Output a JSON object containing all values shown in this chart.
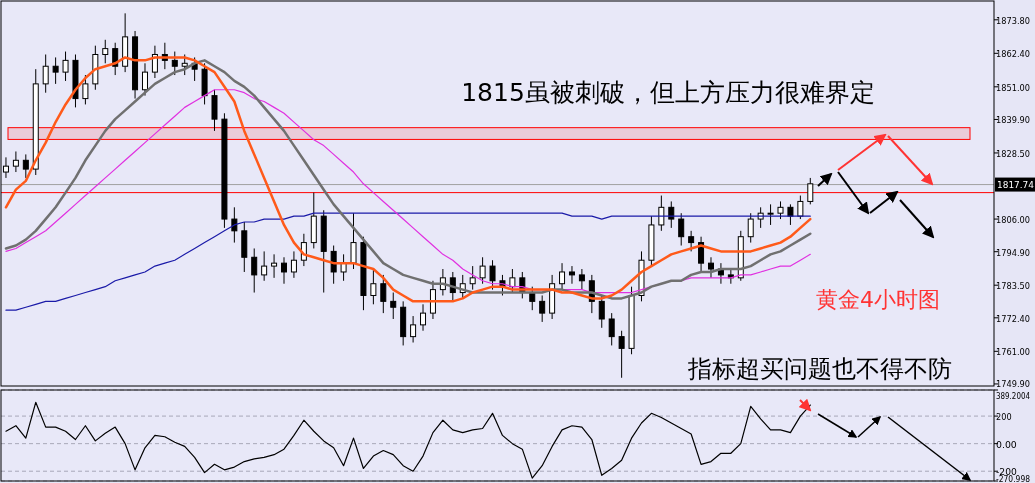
{
  "chart_data": [
    {
      "type": "candlestick",
      "tick_labels": "y",
      "grid": false,
      "categories": [
        null,
        null,
        null,
        null,
        null,
        null,
        null,
        null,
        null,
        null,
        null,
        null,
        null,
        null,
        null,
        null,
        null,
        null,
        null,
        null,
        null,
        null,
        null,
        null,
        null,
        null,
        null,
        null,
        null,
        null,
        null,
        null,
        null,
        null,
        null,
        null,
        null,
        null,
        null,
        null,
        null,
        null,
        null,
        null,
        null,
        null,
        null,
        null,
        null,
        null,
        null,
        null,
        null,
        null,
        null,
        null,
        null,
        null,
        null,
        null,
        null,
        null,
        null,
        null,
        null,
        null,
        null,
        null,
        null,
        null,
        null,
        null,
        null,
        null,
        null,
        null,
        null,
        null,
        null,
        null,
        null,
        null,
        null,
        null,
        null,
        null,
        null,
        null,
        null,
        null,
        null,
        null,
        null,
        null,
        null,
        null,
        null,
        null,
        null,
        null
      ],
      "ylim": [
        1749.2,
        1880.2
      ],
      "yticks": [
        {
          "value": 1873.8,
          "label": "1873.80"
        },
        {
          "value": 1862.4,
          "label": "1862.40"
        },
        {
          "value": 1851,
          "label": "1851.00"
        },
        {
          "value": 1839.9,
          "label": "1839.90"
        },
        {
          "value": 1828.5,
          "label": "1828.50"
        },
        {
          "value": 1806,
          "label": "1806.00"
        },
        {
          "value": 1794.9,
          "label": "1794.90"
        },
        {
          "value": 1783.5,
          "label": "1783.50"
        },
        {
          "value": 1772.4,
          "label": "1772.40"
        },
        {
          "value": 1761,
          "label": "1761.00"
        },
        {
          "value": 1749.9,
          "label": "1749.90"
        }
      ],
      "ohlc": [
        [
          1822,
          1827,
          1820,
          1824
        ],
        [
          1824,
          1829,
          1822,
          1826
        ],
        [
          1826,
          1828,
          1820,
          1823
        ],
        [
          1823,
          1857,
          1821,
          1852
        ],
        [
          1852,
          1862,
          1849,
          1858
        ],
        [
          1858,
          1861,
          1852,
          1856
        ],
        [
          1856,
          1863,
          1853,
          1860
        ],
        [
          1860,
          1862,
          1844,
          1847
        ],
        [
          1847,
          1855,
          1845,
          1852
        ],
        [
          1852,
          1865,
          1850,
          1862
        ],
        [
          1862,
          1867,
          1859,
          1864
        ],
        [
          1864,
          1866,
          1855,
          1858
        ],
        [
          1858,
          1876,
          1856,
          1868
        ],
        [
          1868,
          1870,
          1847,
          1850
        ],
        [
          1850,
          1859,
          1848,
          1856
        ],
        [
          1856,
          1865,
          1854,
          1862
        ],
        [
          1862,
          1866,
          1857,
          1860
        ],
        [
          1860,
          1863,
          1855,
          1858
        ],
        [
          1858,
          1862,
          1855,
          1859
        ],
        [
          1859,
          1861,
          1853,
          1857
        ],
        [
          1857,
          1859,
          1845,
          1848
        ],
        [
          1848,
          1850,
          1836,
          1840
        ],
        [
          1840,
          1842,
          1803,
          1806
        ],
        [
          1806,
          1810,
          1798,
          1802
        ],
        [
          1802,
          1805,
          1788,
          1793
        ],
        [
          1793,
          1796,
          1781,
          1787
        ],
        [
          1787,
          1795,
          1785,
          1790
        ],
        [
          1790,
          1794,
          1786,
          1791
        ],
        [
          1791,
          1793,
          1784,
          1788
        ],
        [
          1788,
          1795,
          1786,
          1792
        ],
        [
          1792,
          1801,
          1790,
          1798
        ],
        [
          1798,
          1815,
          1796,
          1807
        ],
        [
          1807,
          1809,
          1781,
          1795
        ],
        [
          1795,
          1797,
          1784,
          1788
        ],
        [
          1788,
          1794,
          1785,
          1791
        ],
        [
          1791,
          1808,
          1789,
          1798
        ],
        [
          1798,
          1800,
          1775,
          1780
        ],
        [
          1780,
          1789,
          1777,
          1784
        ],
        [
          1784,
          1787,
          1774,
          1778
        ],
        [
          1778,
          1781,
          1772,
          1776
        ],
        [
          1776,
          1778,
          1763,
          1766
        ],
        [
          1766,
          1773,
          1764,
          1770
        ],
        [
          1770,
          1777,
          1768,
          1774
        ],
        [
          1774,
          1785,
          1772,
          1782
        ],
        [
          1782,
          1789,
          1780,
          1786
        ],
        [
          1786,
          1788,
          1778,
          1781
        ],
        [
          1781,
          1787,
          1779,
          1784
        ],
        [
          1784,
          1790,
          1782,
          1786
        ],
        [
          1786,
          1793,
          1784,
          1790
        ],
        [
          1790,
          1792,
          1782,
          1785
        ],
        [
          1785,
          1787,
          1780,
          1783
        ],
        [
          1783,
          1789,
          1781,
          1786
        ],
        [
          1786,
          1788,
          1779,
          1781
        ],
        [
          1781,
          1783,
          1775,
          1778
        ],
        [
          1778,
          1780,
          1771,
          1774
        ],
        [
          1774,
          1787,
          1772,
          1784
        ],
        [
          1784,
          1791,
          1782,
          1788
        ],
        [
          1788,
          1790,
          1784,
          1787
        ],
        [
          1787,
          1789,
          1782,
          1785
        ],
        [
          1785,
          1787,
          1774,
          1778
        ],
        [
          1778,
          1780,
          1769,
          1772
        ],
        [
          1772,
          1774,
          1763,
          1766
        ],
        [
          1766,
          1768,
          1752,
          1762
        ],
        [
          1762,
          1783,
          1760,
          1780
        ],
        [
          1780,
          1795,
          1778,
          1792
        ],
        [
          1792,
          1807,
          1790,
          1804
        ],
        [
          1804,
          1814,
          1802,
          1810
        ],
        [
          1810,
          1812,
          1803,
          1806
        ],
        [
          1806,
          1808,
          1797,
          1800
        ],
        [
          1800,
          1802,
          1795,
          1798
        ],
        [
          1798,
          1800,
          1788,
          1791
        ],
        [
          1791,
          1793,
          1786,
          1789
        ],
        [
          1789,
          1791,
          1784,
          1787
        ],
        [
          1787,
          1789,
          1784,
          1786
        ],
        [
          1786,
          1802,
          1785,
          1800
        ],
        [
          1800,
          1808,
          1798,
          1806
        ],
        [
          1806,
          1810,
          1803,
          1808
        ],
        [
          1808,
          1811,
          1804,
          1808
        ],
        [
          1808,
          1812,
          1806,
          1810
        ],
        [
          1810,
          1811,
          1804,
          1807
        ],
        [
          1807,
          1814,
          1806,
          1812
        ],
        [
          1812,
          1820,
          1811,
          1818
        ],
        null,
        null,
        null,
        null,
        null,
        null,
        null,
        null,
        null,
        null,
        null,
        null,
        null,
        null,
        null,
        null,
        null,
        null
      ],
      "series": [
        {
          "type": "line",
          "color": "#1a1aa8",
          "values": [
            1775,
            1775,
            1776,
            1777,
            1778,
            1778,
            1779,
            1780,
            1781,
            1782,
            1783,
            1785,
            1786,
            1787,
            1788,
            1790,
            1791,
            1792,
            1794,
            1796,
            1798,
            1800,
            1802,
            1804,
            1805,
            1805,
            1806,
            1806,
            1806,
            1807,
            1807,
            1808,
            1808,
            1808,
            1808,
            1808,
            1808,
            1808,
            1808,
            1808,
            1808,
            1808,
            1808,
            1808,
            1808,
            1808,
            1808,
            1808,
            1808,
            1808,
            1808,
            1808,
            1808,
            1808,
            1808,
            1808,
            1808,
            1807,
            1807,
            1807,
            1806,
            1807,
            1807,
            1807,
            1807,
            1807,
            1807,
            1807,
            1807,
            1807,
            1807,
            1807,
            1807,
            1807,
            1807,
            1807,
            1807,
            1807,
            1807,
            1807,
            1807,
            1807,
            null,
            null,
            null,
            null,
            null,
            null,
            null,
            null,
            null,
            null,
            null,
            null,
            null,
            null,
            null,
            null,
            null,
            null
          ]
        },
        {
          "type": "line",
          "color": "#e030e0",
          "values": [
            1795,
            1796,
            1798,
            1800,
            1802,
            1805,
            1808,
            1811,
            1814,
            1817,
            1820,
            1823,
            1826,
            1829,
            1832,
            1835,
            1838,
            1841,
            1844,
            1846,
            1848,
            1850,
            1850,
            1850,
            1849,
            1847,
            1846,
            1844,
            1842,
            1839,
            1836,
            1833,
            1831,
            1828,
            1825,
            1822,
            1818,
            1815,
            1812,
            1809,
            1806,
            1803,
            1800,
            1797,
            1794,
            1792,
            1789,
            1787,
            1785,
            1784,
            1784,
            1783,
            1783,
            1782,
            1782,
            1782,
            1782,
            1782,
            1782,
            1781,
            1781,
            1781,
            1781,
            1781,
            1782,
            1783,
            1784,
            1785,
            1785,
            1786,
            1786,
            1786,
            1786,
            1786,
            1787,
            1787,
            1788,
            1789,
            1790,
            1790,
            1792,
            1794,
            null,
            null,
            null,
            null,
            null,
            null,
            null,
            null,
            null,
            null,
            null,
            null,
            null,
            null,
            null,
            null,
            null,
            null
          ]
        },
        {
          "type": "line",
          "color": "#707070",
          "values": [
            1796,
            1797,
            1799,
            1802,
            1806,
            1810,
            1815,
            1820,
            1826,
            1831,
            1836,
            1840,
            1843,
            1846,
            1849,
            1852,
            1854,
            1856,
            1857,
            1859,
            1860,
            1858,
            1856,
            1853,
            1851,
            1848,
            1844,
            1840,
            1836,
            1831,
            1826,
            1821,
            1816,
            1811,
            1807,
            1803,
            1799,
            1795,
            1791,
            1789,
            1787,
            1786,
            1785,
            1784,
            1784,
            1783,
            1782,
            1781,
            1781,
            1781,
            1781,
            1781,
            1781,
            1781,
            1781,
            1782,
            1782,
            1781,
            1781,
            1781,
            1780,
            1779,
            1779,
            1780,
            1781,
            1783,
            1784,
            1785,
            1785,
            1787,
            1788,
            1788,
            1789,
            1789,
            1789,
            1790,
            1792,
            1794,
            1795,
            1797,
            1799,
            1801,
            null,
            null,
            null,
            null,
            null,
            null,
            null,
            null,
            null,
            null,
            null,
            null,
            null,
            null,
            null,
            null,
            null,
            null
          ]
        },
        {
          "type": "line",
          "color": "#ff5a1a",
          "values": [
            1810,
            1816,
            1819,
            1826,
            1832,
            1839,
            1845,
            1850,
            1854,
            1857,
            1858,
            1859,
            1861,
            1860,
            1860,
            1861,
            1861,
            1861,
            1861,
            1860,
            1858,
            1856,
            1851,
            1846,
            1836,
            1828,
            1820,
            1812,
            1804,
            1798,
            1794,
            1793,
            1792,
            1791,
            1791,
            1791,
            1790,
            1789,
            1786,
            1782,
            1780,
            1778,
            1778,
            1778,
            1778,
            1778,
            1779,
            1781,
            1782,
            1783,
            1783,
            1782,
            1782,
            1782,
            1782,
            1782,
            1781,
            1781,
            1780,
            1779,
            1779,
            1780,
            1782,
            1785,
            1788,
            1790,
            1792,
            1794,
            1795,
            1796,
            1797,
            1796,
            1795,
            1795,
            1795,
            1795,
            1796,
            1797,
            1798,
            1800,
            1803,
            1806,
            null,
            null,
            null,
            null,
            null,
            null,
            null,
            null,
            null,
            null,
            null,
            null,
            null,
            null,
            null,
            null,
            null,
            null
          ]
        }
      ],
      "bands": [
        {
          "axis": "y",
          "from": 1833.1,
          "to": 1837.1,
          "color": "#ff0000"
        }
      ],
      "ref_lines": [
        {
          "axis": "y",
          "value": 1817.74,
          "label": "1817.74",
          "color": "#a0a0a0"
        },
        {
          "axis": "y",
          "value": 1815,
          "color": "#ff0000"
        }
      ],
      "annotations": [
        "1815虽被刺破，但上方压力很难界定",
        "黄金4小时图",
        "指标超买问题也不得不防"
      ]
    },
    {
      "type": "line",
      "tick_labels": "y",
      "grid": "y",
      "categories": [
        null,
        null,
        null,
        null,
        null,
        null,
        null,
        null,
        null,
        null,
        null,
        null,
        null,
        null,
        null,
        null,
        null,
        null,
        null,
        null,
        null,
        null,
        null,
        null,
        null,
        null,
        null,
        null,
        null,
        null,
        null,
        null,
        null,
        null,
        null,
        null,
        null,
        null,
        null,
        null,
        null,
        null,
        null,
        null,
        null,
        null,
        null,
        null,
        null,
        null,
        null,
        null,
        null,
        null,
        null,
        null,
        null,
        null,
        null,
        null,
        null,
        null,
        null,
        null,
        null,
        null,
        null,
        null,
        null,
        null,
        null,
        null,
        null,
        null,
        null,
        null,
        null,
        null,
        null,
        null,
        null,
        null,
        null,
        null,
        null,
        null,
        null,
        null,
        null,
        null,
        null,
        null,
        null,
        null,
        null,
        null,
        null,
        null,
        null,
        null
      ],
      "ylim": [
        -270.998,
        389.2004
      ],
      "yticks": [
        {
          "value": 389.2004,
          "label": "389.2004"
        },
        200,
        {
          "value": 0,
          "label": "0.00"
        },
        -200,
        {
          "value": -270.998,
          "label": "-270.998"
        }
      ],
      "series": [
        {
          "color": "#000000",
          "values": [
            90,
            130,
            40,
            300,
            120,
            120,
            90,
            30,
            130,
            20,
            75,
            120,
            0,
            -190,
            -30,
            60,
            50,
            10,
            -20,
            -100,
            -210,
            -150,
            -190,
            -170,
            -130,
            -110,
            -100,
            -80,
            -40,
            60,
            170,
            90,
            20,
            -30,
            -160,
            40,
            -180,
            -90,
            -50,
            -80,
            -160,
            -200,
            -90,
            80,
            170,
            100,
            80,
            100,
            110,
            220,
            60,
            0,
            -40,
            -250,
            -160,
            -20,
            100,
            130,
            120,
            30,
            -230,
            -180,
            -120,
            40,
            150,
            220,
            190,
            150,
            110,
            70,
            -150,
            -130,
            -70,
            -70,
            0,
            270,
            180,
            100,
            100,
            80,
            200,
            280,
            null,
            null,
            null,
            null,
            null,
            null,
            null,
            null,
            null,
            null,
            null,
            null,
            null,
            null,
            null,
            null,
            null,
            null
          ]
        }
      ]
    }
  ]
}
